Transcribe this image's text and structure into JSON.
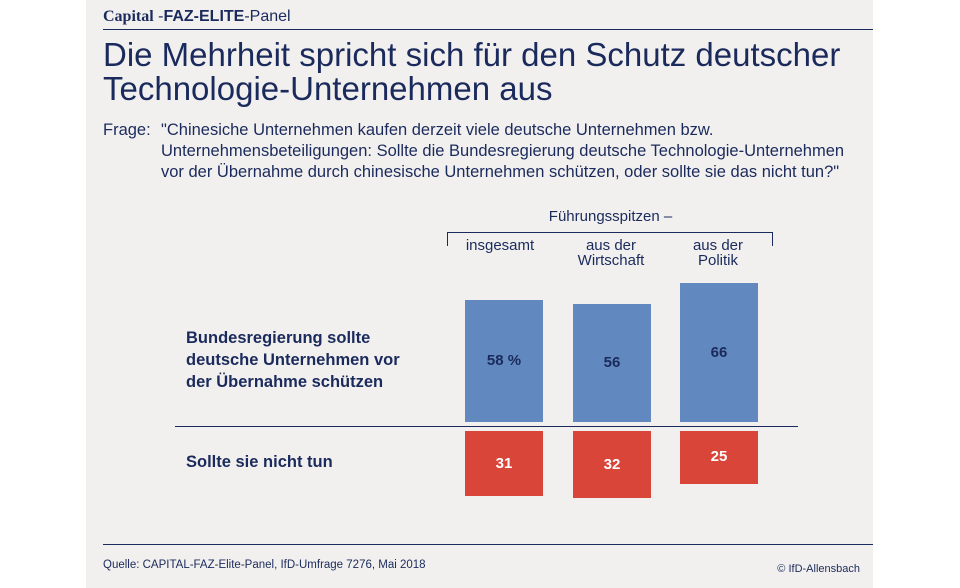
{
  "header": {
    "brand_capital": "Capital",
    "brand_sep1": " -",
    "brand_faz": "FAZ-ELITE",
    "brand_sep2": "-",
    "brand_panel": "Panel"
  },
  "title": "Die Mehrheit spricht sich für den Schutz deutscher Technologie-Unternehmen aus",
  "question": {
    "label": "Frage:",
    "text": "\"Chinesiche Unternehmen kaufen derzeit viele deutsche Unternehmen bzw. Unternehmensbeteiligungen: Sollte die Bundesregierung deutsche Technologie-Unternehmen vor der Übernahme durch chinesische Unternehmen schützen, oder sollte sie das nicht tun?\""
  },
  "footer": {
    "source": "Quelle: CAPITAL-FAZ-Elite-Panel, IfD-Umfrage 7276, Mai 2018",
    "copyright": "© IfD-Allensbach"
  },
  "colors": {
    "navy": "#1a2a5c",
    "blue_bar": "#6189bf",
    "red_bar": "#da4539",
    "panel_bg": "#f2f0ee"
  },
  "chart_data": {
    "type": "bar",
    "group_label": "Führungsspitzen –",
    "categories": [
      "insgesamt",
      "aus der Wirtschaft",
      "aus der Politik"
    ],
    "category_lines": [
      [
        "insgesamt"
      ],
      [
        "aus der",
        "Wirtschaft"
      ],
      [
        "aus der",
        "Politik"
      ]
    ],
    "series": [
      {
        "name": "Bundesregierung sollte deutsche Unternehmen vor der Übernahme schützen",
        "name_lines": [
          "Bundesregierung sollte",
          "deutsche Unternehmen vor",
          "der Übernahme schützen"
        ],
        "values": [
          58,
          56,
          66
        ],
        "labels": [
          "58 %",
          "56",
          "66"
        ],
        "direction": "up"
      },
      {
        "name": "Sollte sie nicht tun",
        "name_lines": [
          "Sollte sie nicht tun"
        ],
        "values": [
          31,
          32,
          25
        ],
        "labels": [
          "31",
          "32",
          "25"
        ],
        "direction": "down"
      }
    ],
    "unit": "%",
    "ylim": [
      0,
      100
    ]
  }
}
